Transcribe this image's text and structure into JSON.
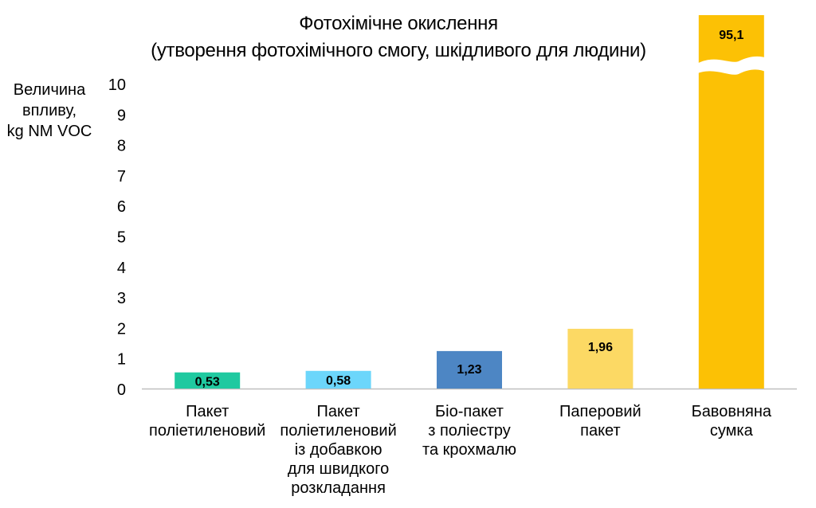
{
  "chart_data": {
    "type": "bar",
    "title": "Фотохімічне окислення",
    "subtitle": "(утворення фотохімічного  смогу, шкідливого для людини)",
    "ylabel_lines": [
      "Величина",
      "впливу,",
      "kg NM VOC"
    ],
    "xlabel": "",
    "ylim": [
      0,
      10
    ],
    "y_ticks": [
      "0",
      "1",
      "2",
      "3",
      "4",
      "5",
      "6",
      "7",
      "8",
      "9",
      "10"
    ],
    "axis_break": true,
    "grid": false,
    "categories": [
      [
        "Пакет",
        "поліетиленовий"
      ],
      [
        "Пакет",
        "поліетиленовий",
        "із добавкою",
        "для швидкого",
        "розкладання"
      ],
      [
        "Біо-пакет",
        "з поліестру",
        "та крохмалю"
      ],
      [
        "Паперовий",
        "пакет"
      ],
      [
        "Бавовняна",
        "сумка"
      ]
    ],
    "values": [
      0.53,
      0.58,
      1.23,
      1.96,
      95.1
    ],
    "value_labels": [
      "0,53",
      "0,58",
      "1,23",
      "1,96",
      "95,1"
    ],
    "colors": [
      "#1fc9a0",
      "#6cd6fb",
      "#4d86c4",
      "#fcd964",
      "#fcc105"
    ]
  }
}
